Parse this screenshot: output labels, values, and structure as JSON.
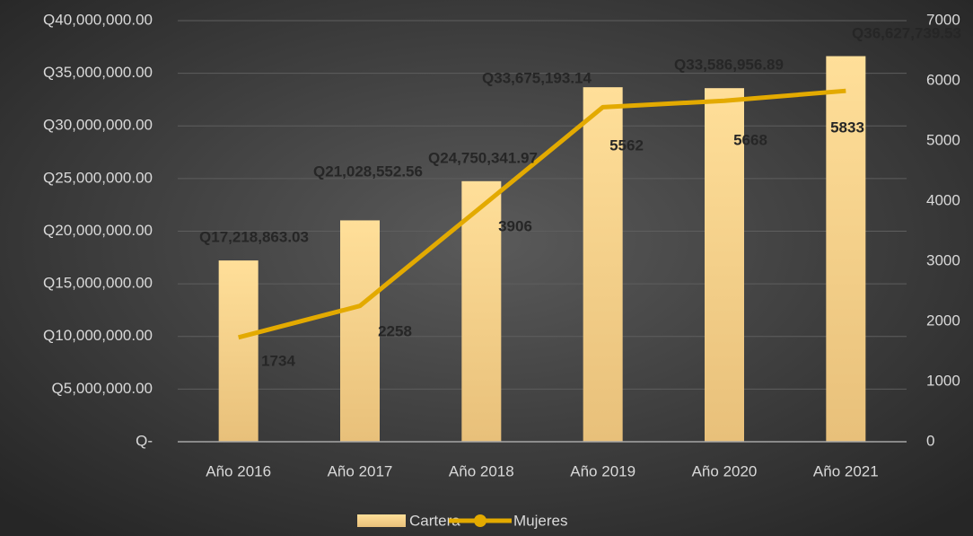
{
  "chart_data": {
    "type": "combo",
    "categories": [
      "Año 2016",
      "Año 2017",
      "Año 2018",
      "Año 2019",
      "Año 2020",
      "Año 2021"
    ],
    "series": [
      {
        "name": "Cartera",
        "type": "bar",
        "color": "#ffd98c",
        "values": [
          17218863.03,
          21028552.56,
          24750341.97,
          33675193.14,
          33586956.89,
          36627739.53
        ],
        "value_labels": [
          "Q17,218,863.03",
          "Q21,028,552.56",
          "Q24,750,341.97",
          "Q33,675,193.14",
          "Q33,586,956.89",
          "Q36,627,739.53"
        ]
      },
      {
        "name": "Mujeres",
        "type": "line",
        "axis": "y2",
        "color": "#e3aa00",
        "values": [
          1734,
          2258,
          3906,
          5562,
          5668,
          5833
        ]
      }
    ],
    "ylim": [
      0,
      40000000
    ],
    "yticks": [
      {
        "value": 0,
        "label": "Q-"
      },
      {
        "value": 5000000,
        "label": "Q5,000,000.00"
      },
      {
        "value": 10000000,
        "label": "Q10,000,000.00"
      },
      {
        "value": 15000000,
        "label": "Q15,000,000.00"
      },
      {
        "value": 20000000,
        "label": "Q20,000,000.00"
      },
      {
        "value": 25000000,
        "label": "Q25,000,000.00"
      },
      {
        "value": 30000000,
        "label": "Q30,000,000.00"
      },
      {
        "value": 35000000,
        "label": "Q35,000,000.00"
      },
      {
        "value": 40000000,
        "label": "Q40,000,000.00"
      }
    ],
    "y2lim": [
      0,
      7000
    ],
    "y2ticks": [
      0,
      1000,
      2000,
      3000,
      4000,
      5000,
      6000,
      7000
    ],
    "grid": true,
    "legend": "bottom"
  }
}
